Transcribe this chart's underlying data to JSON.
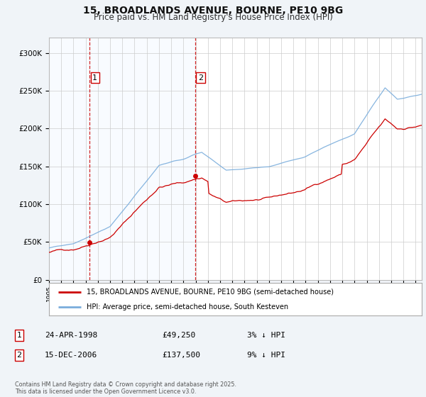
{
  "title": "15, BROADLANDS AVENUE, BOURNE, PE10 9BG",
  "subtitle": "Price paid vs. HM Land Registry's House Price Index (HPI)",
  "title_fontsize": 10,
  "subtitle_fontsize": 8.5,
  "legend_line1": "15, BROADLANDS AVENUE, BOURNE, PE10 9BG (semi-detached house)",
  "legend_line2": "HPI: Average price, semi-detached house, South Kesteven",
  "line1_color": "#cc0000",
  "line2_color": "#7aaddc",
  "marker1_color": "#cc0000",
  "sale1_date_num": 1998.31,
  "sale1_price": 49250,
  "sale2_date_num": 2006.96,
  "sale2_price": 137500,
  "sale1_date_str": "24-APR-1998",
  "sale1_price_str": "£49,250",
  "sale1_hpi_str": "3% ↓ HPI",
  "sale2_date_str": "15-DEC-2006",
  "sale2_price_str": "£137,500",
  "sale2_hpi_str": "9% ↓ HPI",
  "vline1_x": 1998.31,
  "vline2_x": 2006.96,
  "vline_color": "#cc0000",
  "shade_color": "#ddeeff",
  "xmin": 1995.0,
  "xmax": 2025.5,
  "ymin": 0,
  "ymax": 320000,
  "yticks": [
    0,
    50000,
    100000,
    150000,
    200000,
    250000,
    300000
  ],
  "ytick_labels": [
    "£0",
    "£50K",
    "£100K",
    "£150K",
    "£200K",
    "£250K",
    "£300K"
  ],
  "footer": "Contains HM Land Registry data © Crown copyright and database right 2025.\nThis data is licensed under the Open Government Licence v3.0.",
  "bg_color": "#f0f4f8",
  "plot_bg_color": "#ffffff",
  "grid_color": "#cccccc"
}
